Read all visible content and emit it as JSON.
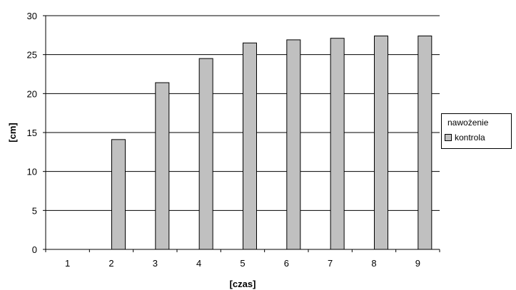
{
  "chart_data": {
    "type": "bar",
    "categories": [
      "1",
      "2",
      "3",
      "4",
      "5",
      "6",
      "7",
      "8",
      "9"
    ],
    "series": [
      {
        "name": "nawożenie",
        "values": [
          0,
          0,
          0,
          0,
          0,
          0,
          0,
          0,
          0
        ],
        "color": "#000000"
      },
      {
        "name": "kontrola",
        "values": [
          0,
          14.1,
          21.4,
          24.5,
          26.5,
          26.9,
          27.1,
          27.4,
          27.4
        ],
        "color": "#c0c0c0"
      }
    ],
    "title": "",
    "xlabel": "[czas]",
    "ylabel": "[cm]",
    "ylim": [
      0,
      30
    ],
    "yticks": [
      "0",
      "5",
      "10",
      "15",
      "20",
      "25",
      "30"
    ],
    "grid": true,
    "legend_position": "right"
  }
}
